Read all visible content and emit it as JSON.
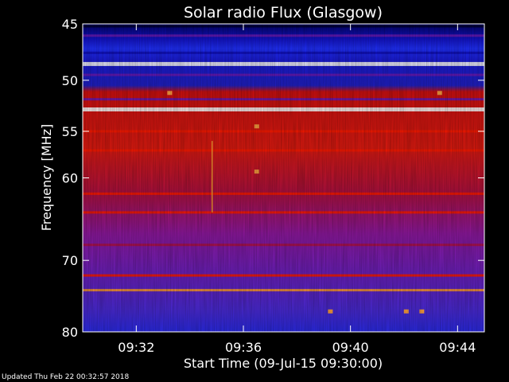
{
  "chart_data": {
    "type": "heatmap",
    "title": "Solar radio Flux (Glasgow)",
    "xlabel": "Start Time (09-Jul-15 09:30:00)",
    "ylabel": "Frequency [MHz]",
    "xlim": [
      "09:30:00",
      "09:45:00"
    ],
    "ylim": [
      45,
      80
    ],
    "y_scale": "log",
    "y_inverted": true,
    "xticks": [
      "09:32",
      "09:36",
      "09:40",
      "09:44"
    ],
    "yticks": [
      45,
      50,
      55,
      60,
      70,
      80
    ],
    "grid": false,
    "colormap": [
      "#000033",
      "#1010c0",
      "#6a1ab8",
      "#b0124a",
      "#ff1a00",
      "#ff9a30",
      "#ffffff"
    ],
    "horizontal_bands": [
      {
        "freq": 45.2,
        "intensity": 0.05
      },
      {
        "freq": 46.0,
        "intensity": 0.25
      },
      {
        "freq": 47.5,
        "intensity": 0.15
      },
      {
        "freq": 48.5,
        "intensity": 1.0
      },
      {
        "freq": 49.5,
        "intensity": 0.25
      },
      {
        "freq": 51.8,
        "intensity": 0.35
      },
      {
        "freq": 52.8,
        "intensity": 0.95
      },
      {
        "freq": 55.0,
        "intensity": 0.72
      },
      {
        "freq": 57.0,
        "intensity": 0.7
      },
      {
        "freq": 61.8,
        "intensity": 0.6
      },
      {
        "freq": 64.0,
        "intensity": 0.65
      },
      {
        "freq": 68.0,
        "intensity": 0.58
      },
      {
        "freq": 72.0,
        "intensity": 0.68
      },
      {
        "freq": 74.0,
        "intensity": 0.75
      }
    ],
    "spot_features": [
      {
        "time": "09:33:15",
        "freq": 51.2
      },
      {
        "time": "09:36:30",
        "freq": 54.5
      },
      {
        "time": "09:36:30",
        "freq": 59.3
      },
      {
        "time": "09:43:20",
        "freq": 51.2
      },
      {
        "time": "09:39:15",
        "freq": 77.0
      },
      {
        "time": "09:42:05",
        "freq": 77.0
      },
      {
        "time": "09:42:40",
        "freq": 77.0
      }
    ],
    "vertical_features": [
      {
        "time": "09:34:50",
        "freq_range": [
          56,
          64
        ]
      }
    ]
  },
  "footer": {
    "text": "Updated Thu Feb 22 00:32:57 2018"
  }
}
